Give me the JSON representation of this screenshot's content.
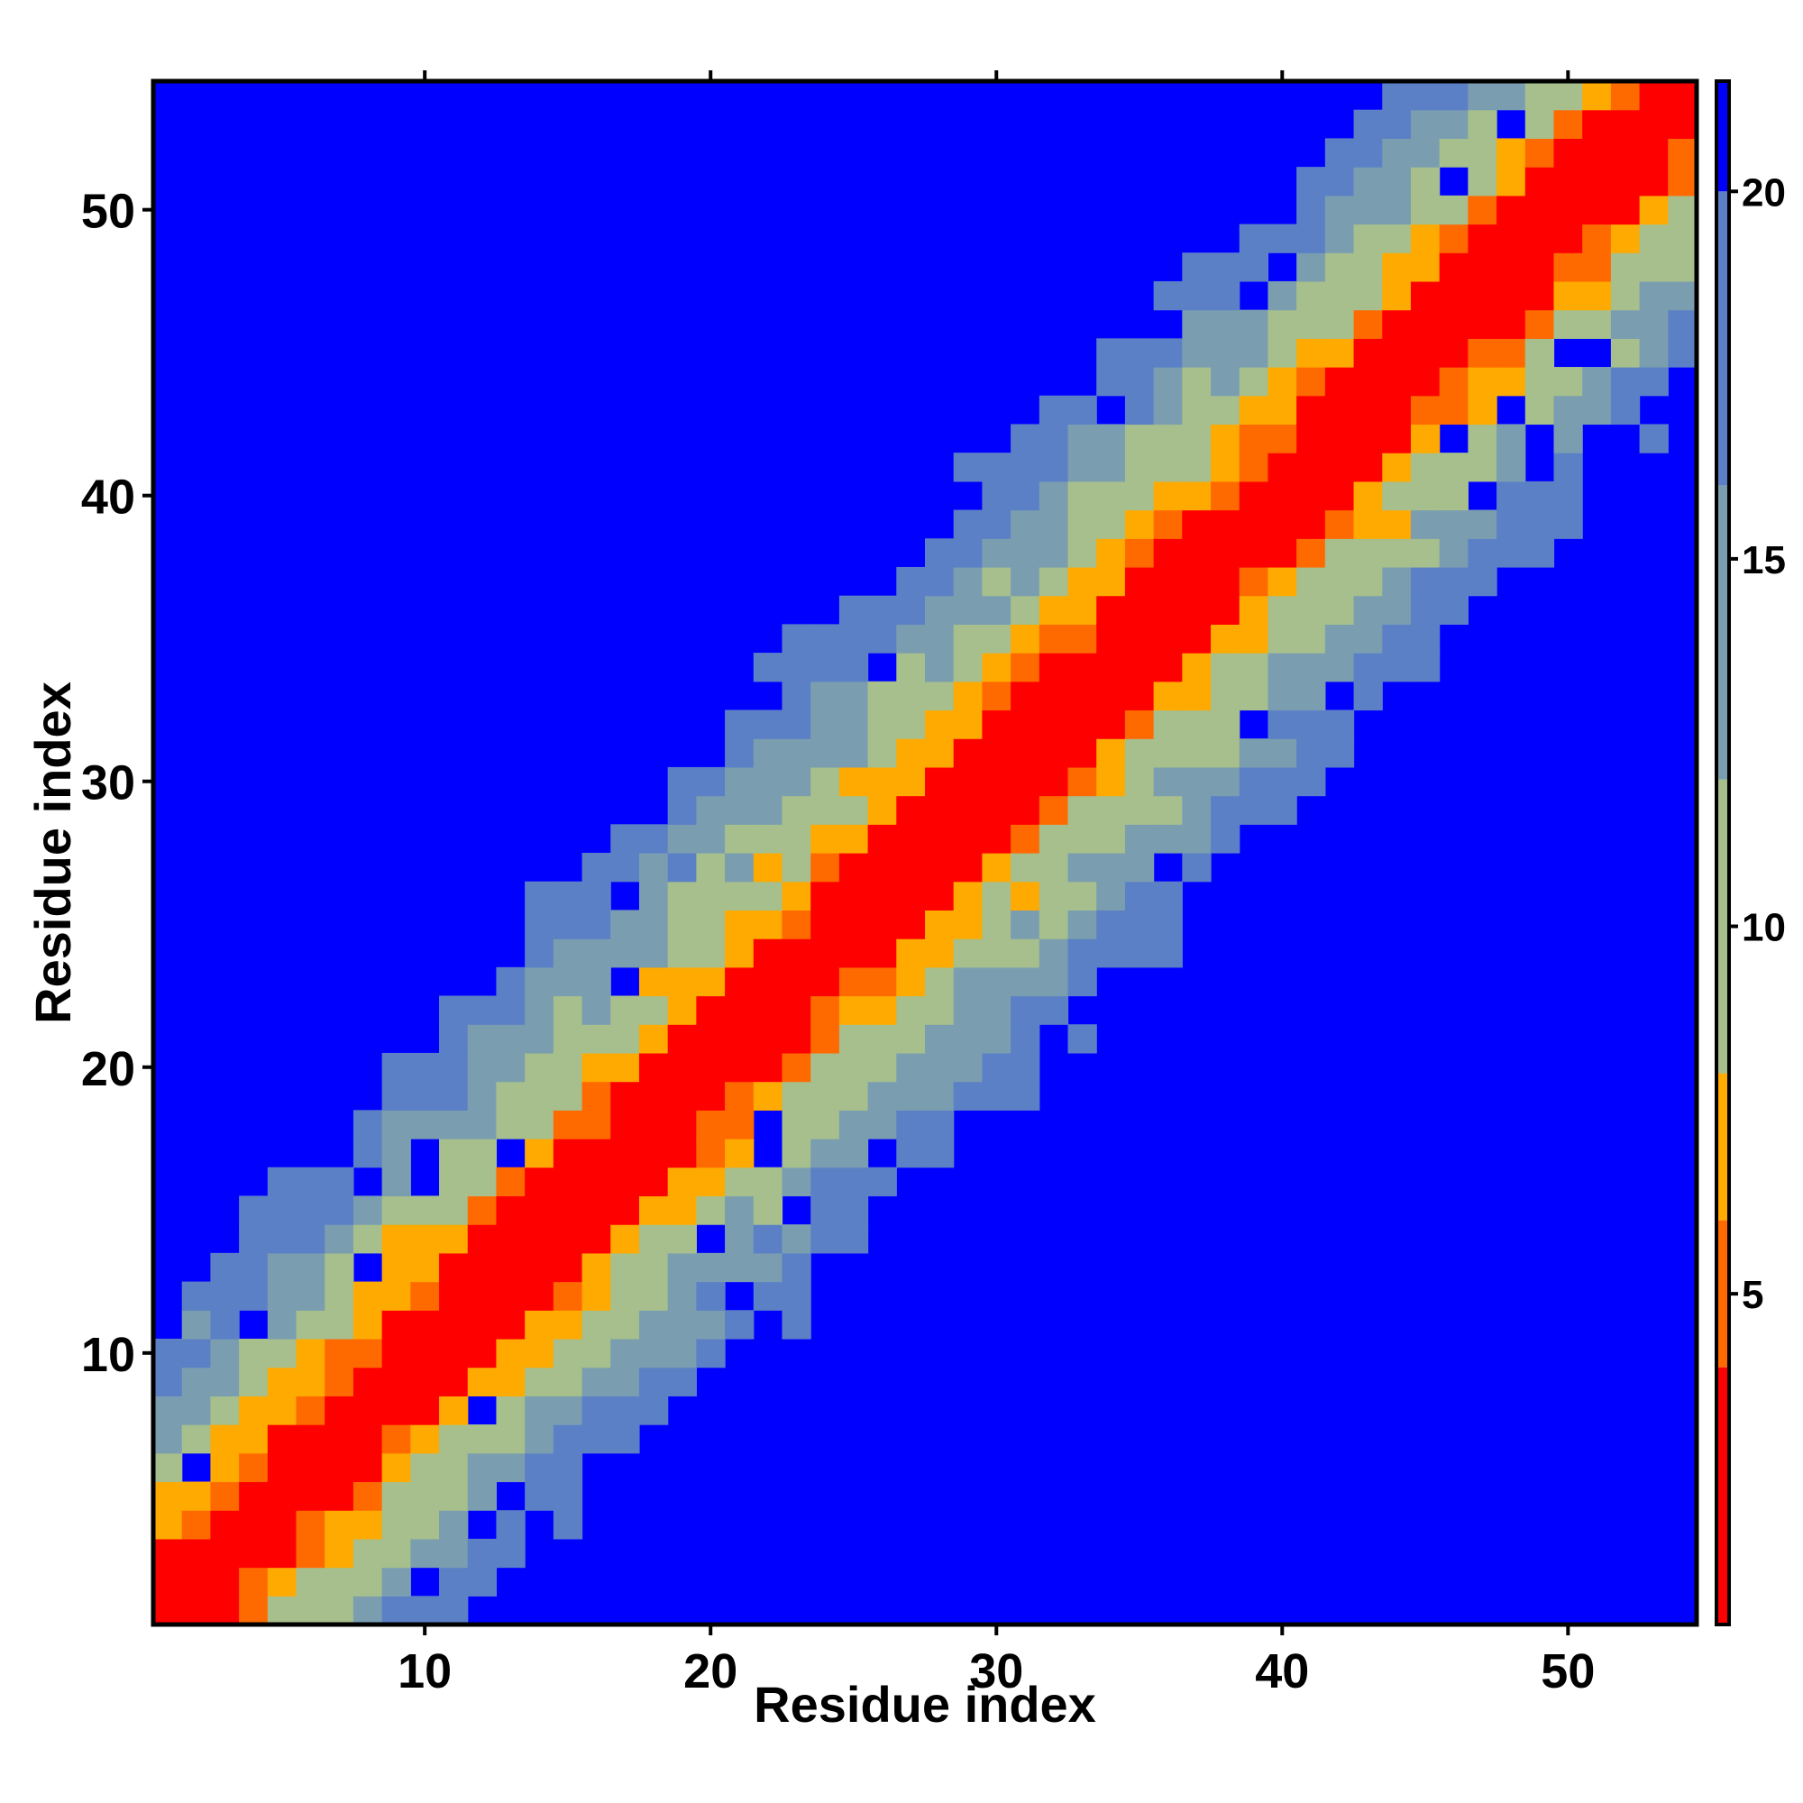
{
  "chart_data": {
    "type": "heatmap",
    "title": "",
    "xlabel": "Residue index",
    "ylabel": "Residue index",
    "n_residues": 54,
    "xlim": [
      0.5,
      54.5
    ],
    "ylim": [
      0.5,
      54.5
    ],
    "x_ticks": [
      10,
      20,
      30,
      40,
      50
    ],
    "x_tick_labels": [
      "10",
      "20",
      "30",
      "40",
      "50"
    ],
    "y_ticks": [
      10,
      20,
      30,
      40,
      50
    ],
    "y_tick_labels": [
      "10",
      "20",
      "30",
      "40",
      "50"
    ],
    "grid": false,
    "legend": "none",
    "colorbar": {
      "position": "right",
      "range": [
        0.5,
        21.5
      ],
      "ticks": [
        5,
        10,
        15,
        20
      ],
      "tick_labels": [
        "5",
        "10",
        "15",
        "20"
      ],
      "color_stops": [
        {
          "max": 4,
          "color": "#ff0000"
        },
        {
          "max": 6,
          "color": "#ff6a00"
        },
        {
          "max": 8,
          "color": "#ffaa00"
        },
        {
          "max": 12,
          "color": "#a6bf8c"
        },
        {
          "max": 16,
          "color": "#7a9eb0"
        },
        {
          "max": 20,
          "color": "#5b80c6"
        },
        {
          "max": 21.5,
          "color": "#0000ff"
        }
      ]
    },
    "value_model": "contact distance matrix: value approximately |i - j| scaled by local structure, saturating at 21 (blue) for far pairs",
    "band_half_widths": {
      "red": 2,
      "orange": 4,
      "amber": 5,
      "green": 9,
      "steel": 12
    }
  },
  "colors": {
    "background": "#0000ff",
    "frame": "#000000",
    "page": "#ffffff"
  }
}
